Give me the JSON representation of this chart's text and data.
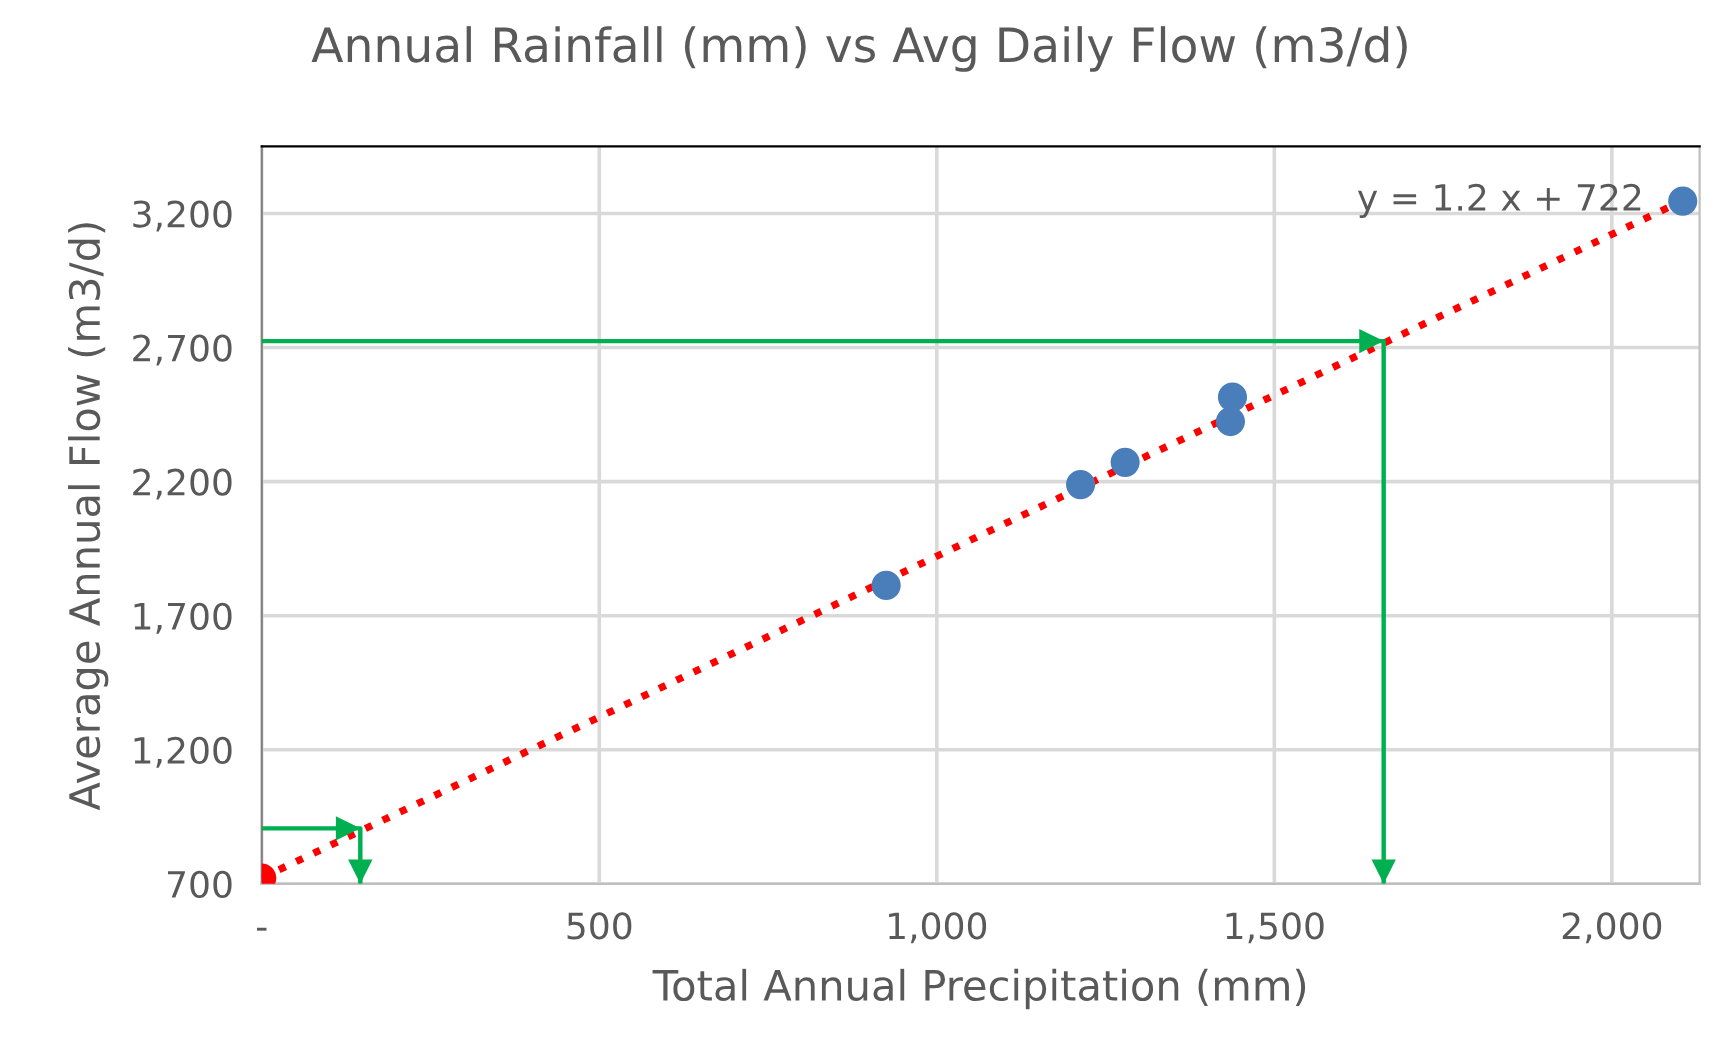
{
  "chart_data": {
    "type": "scatter",
    "title": "Annual Rainfall (mm) vs Avg Daily Flow (m3/d)",
    "xlabel": "Total Annual Precipitation (mm)",
    "ylabel": "Average Annual Flow (m3/d)",
    "xlim": [
      0,
      2130
    ],
    "ylim": [
      700,
      3450
    ],
    "xticks": [
      {
        "value": 0,
        "label": "-"
      },
      500,
      {
        "value": 1000,
        "label": "1,000"
      },
      {
        "value": 1500,
        "label": "1,500"
      },
      {
        "value": 2000,
        "label": "2,000"
      }
    ],
    "yticks": [
      700,
      {
        "value": 1200,
        "label": "1,200"
      },
      {
        "value": 1700,
        "label": "1,700"
      },
      {
        "value": 2200,
        "label": "2,200"
      },
      {
        "value": 2700,
        "label": "2,700"
      },
      {
        "value": 3200,
        "label": "3,200"
      }
    ],
    "grid": true,
    "series": [
      {
        "type": "line",
        "marker": "none",
        "color": "#ff0000",
        "line_style": "dotted",
        "x": [
          0,
          2105
        ],
        "values": [
          722,
          3248
        ]
      },
      {
        "type": "line",
        "marker": "none",
        "color": "#00b050",
        "line_style": "solid",
        "x": [
          0,
          1662,
          1662
        ],
        "values": [
          2724,
          2724,
          700
        ]
      },
      {
        "type": "line",
        "marker": "none",
        "color": "#00b050",
        "line_style": "solid",
        "x": [
          0,
          146,
          146
        ],
        "values": [
          907,
          907,
          700
        ]
      },
      {
        "marker": "circle",
        "color": "#4a7ebb",
        "x": [
          925,
          1213,
          1279,
          1438,
          1435,
          2105
        ],
        "values": [
          1813,
          2189,
          2272,
          2515,
          2424,
          3246
        ]
      },
      {
        "marker": "circle",
        "color": "#ff0000",
        "x": [
          0
        ],
        "values": [
          722
        ]
      }
    ],
    "annotations": [
      {
        "text": "y = 1.2 x + 722",
        "x": 2105,
        "y": 3248
      }
    ]
  }
}
